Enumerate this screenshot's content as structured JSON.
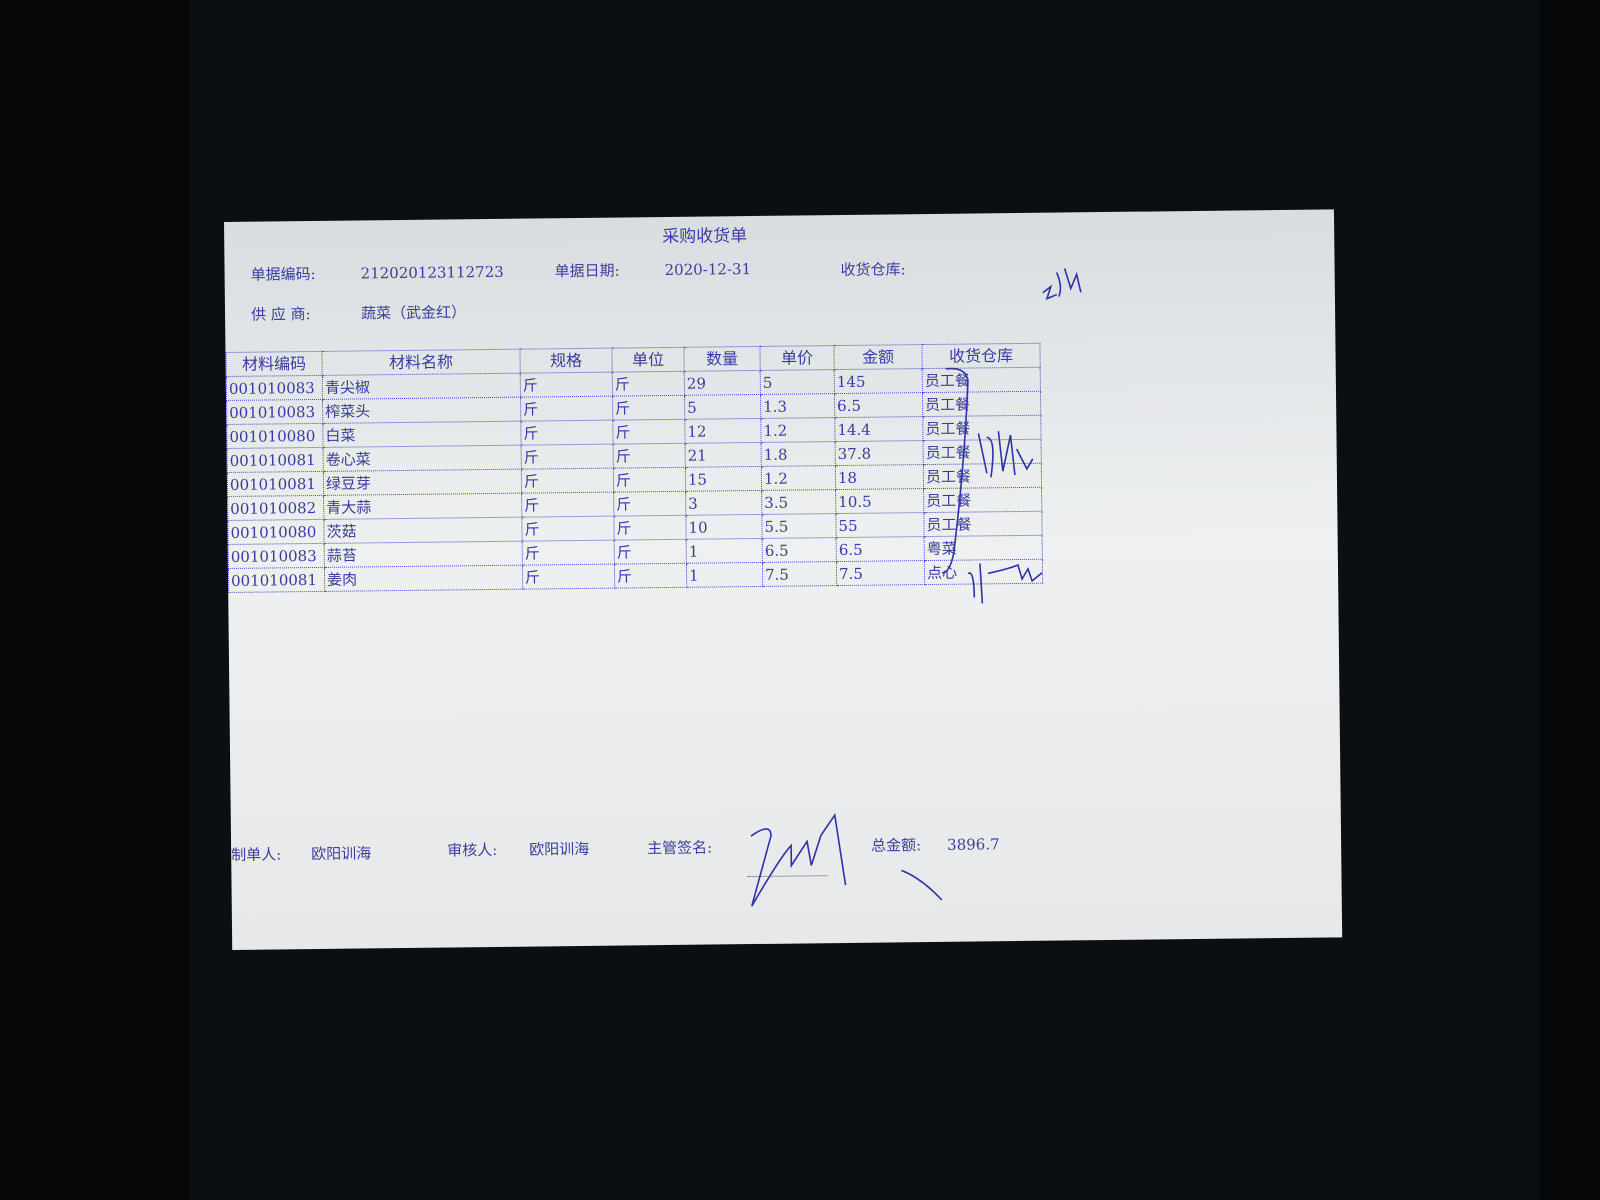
{
  "document": {
    "title": "采购收货单",
    "doc_no_label": "单据编码:",
    "doc_no": "212020123112723",
    "date_label": "单据日期:",
    "date": "2020-12-31",
    "warehouse_label": "收货仓库:",
    "supplier_label": "供 应 商:",
    "supplier": "蔬菜（武金红）",
    "table": {
      "headers": [
        "材料编码",
        "材料名称",
        "规格",
        "单位",
        "数量",
        "单价",
        "金额",
        "收货仓库"
      ],
      "rows": [
        [
          "001010083",
          "青尖椒",
          "斤",
          "斤",
          "29",
          "5",
          "145",
          "员工餐"
        ],
        [
          "001010083",
          "榨菜头",
          "斤",
          "斤",
          "5",
          "1.3",
          "6.5",
          "员工餐"
        ],
        [
          "001010080",
          "白菜",
          "斤",
          "斤",
          "12",
          "1.2",
          "14.4",
          "员工餐"
        ],
        [
          "001010081",
          "卷心菜",
          "斤",
          "斤",
          "21",
          "1.8",
          "37.8",
          "员工餐"
        ],
        [
          "001010081",
          "绿豆芽",
          "斤",
          "斤",
          "15",
          "1.2",
          "18",
          "员工餐"
        ],
        [
          "001010082",
          "青大蒜",
          "斤",
          "斤",
          "3",
          "3.5",
          "10.5",
          "员工餐"
        ],
        [
          "001010080",
          "茨菇",
          "斤",
          "斤",
          "10",
          "5.5",
          "55",
          "员工餐"
        ],
        [
          "001010083",
          "蒜苔",
          "斤",
          "斤",
          "1",
          "6.5",
          "6.5",
          "粤菜"
        ],
        [
          "001010081",
          "姜肉",
          "斤",
          "斤",
          "1",
          "7.5",
          "7.5",
          "点心"
        ]
      ]
    },
    "maker_label": "制单人:",
    "maker": "欧阳训海",
    "reviewer_label": "审核人:",
    "reviewer": "欧阳训海",
    "supervisor_label": "主管签名:",
    "total_label": "总金额:",
    "total": "3896.7"
  },
  "handwriting_note": "2014",
  "ink_color": "#3b3e9c"
}
